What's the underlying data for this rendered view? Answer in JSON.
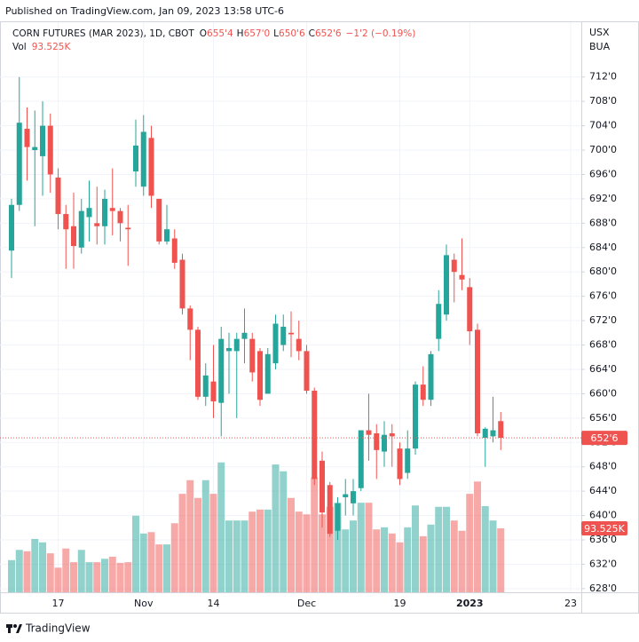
{
  "header": {
    "publisher": "Published on TradingView.com, Jan 09, 2023 13:58 UTC-6"
  },
  "footer": {
    "brand": "TradingView"
  },
  "chart_data": {
    "type": "candlestick",
    "title": "CORN FUTURES (MAR 2023), 1D, CBOT",
    "ohlc_legend": [
      {
        "key": "O",
        "value": "655'4"
      },
      {
        "key": "H",
        "value": "657'0"
      },
      {
        "key": "L",
        "value": "650'6"
      },
      {
        "key": "C",
        "value": "652'6"
      }
    ],
    "change_label": "−1'2 (−0.19%)",
    "volume_name": "Vol",
    "volume_label": "93.525K",
    "currency": "USX",
    "unit": "BUA",
    "up_color": "#26a69a",
    "down_color": "#ef5350",
    "grid": true,
    "categories": [
      null,
      null,
      null,
      null,
      null,
      null,
      "17",
      null,
      null,
      null,
      null,
      null,
      null,
      null,
      null,
      null,
      null,
      "Nov",
      null,
      null,
      null,
      null,
      null,
      null,
      null,
      null,
      "14",
      null,
      null,
      null,
      null,
      null,
      null,
      null,
      null,
      null,
      null,
      null,
      "Dec",
      null,
      null,
      null,
      null,
      null,
      null,
      null,
      null,
      null,
      null,
      null,
      "19",
      null,
      null,
      null,
      null,
      null,
      null,
      null,
      null,
      "2023",
      null,
      null,
      null,
      null,
      null,
      null,
      null,
      null,
      null,
      null,
      null,
      null,
      "23"
    ],
    "open": [
      683.5,
      691,
      703.5,
      700,
      699,
      704,
      695.5,
      689.5,
      687.5,
      684,
      689,
      688,
      687.5,
      690.5,
      690,
      687.25,
      696.5,
      694,
      702,
      692,
      685,
      685.5,
      682,
      674,
      670.5,
      659.5,
      662,
      658.5,
      667,
      667,
      669,
      669,
      667,
      660,
      665,
      668,
      670,
      669,
      667,
      660.5,
      649,
      645,
      637.5,
      643,
      642,
      644.5,
      654,
      653.5,
      650.5,
      653.5,
      651,
      647,
      651,
      661.5,
      659,
      669,
      673,
      682,
      679.5,
      677.5,
      670.5,
      652.75,
      653,
      655.5,
      null,
      null,
      null,
      null,
      null,
      null,
      null,
      null,
      null
    ],
    "high": [
      692,
      712,
      707,
      706.5,
      708,
      706,
      697,
      691,
      693,
      692,
      695,
      694,
      693.5,
      697,
      690.5,
      691,
      705,
      705.75,
      704,
      692,
      691,
      687,
      683,
      674.5,
      671,
      665,
      668,
      671,
      670,
      670,
      674,
      670,
      667.5,
      667.5,
      673,
      673,
      673.5,
      672,
      668,
      661,
      650.5,
      645.5,
      643,
      646,
      646,
      654,
      660,
      655,
      655.5,
      655,
      652,
      654,
      662,
      664.5,
      667,
      677,
      684.5,
      683,
      685.5,
      679,
      671.5,
      654.5,
      659.5,
      657,
      null,
      null,
      null,
      null,
      null,
      null,
      null,
      null,
      null
    ],
    "low": [
      679,
      690,
      695,
      687.5,
      692.5,
      693,
      687,
      680.5,
      680.5,
      683,
      685,
      684.5,
      684.5,
      686,
      685,
      681,
      694,
      692.5,
      690.5,
      684.5,
      684.5,
      680.5,
      673,
      665.5,
      659,
      658,
      656,
      653,
      660,
      656,
      665,
      662,
      658,
      660,
      664,
      667,
      666,
      665.5,
      660,
      645,
      638,
      636.5,
      636,
      640,
      640,
      644,
      649,
      646,
      648,
      648,
      645,
      646,
      650,
      658,
      658,
      667,
      672,
      675,
      677,
      668,
      653,
      648,
      652,
      650.75,
      null,
      null,
      null,
      null,
      null,
      null,
      null,
      null,
      null
    ],
    "close": [
      691,
      704.5,
      700.5,
      700.5,
      704,
      696,
      689.5,
      687,
      684.25,
      690,
      690.5,
      687.5,
      692,
      690,
      688,
      687,
      700.75,
      703,
      692.5,
      685,
      687,
      681.5,
      674,
      670.5,
      659.5,
      663,
      658.75,
      669,
      667.5,
      669,
      670,
      663.5,
      659,
      666.5,
      671.5,
      671,
      669.75,
      667,
      660.5,
      646,
      640.5,
      637,
      642,
      643.5,
      644,
      654,
      653.25,
      650.75,
      653.25,
      653,
      646,
      651,
      661.5,
      659,
      666.5,
      674.75,
      682.75,
      680,
      678.75,
      670.25,
      653.5,
      654.25,
      654,
      652.75,
      null,
      null,
      null,
      null,
      null,
      null,
      null,
      null,
      null
    ],
    "volume": [
      47,
      62,
      60,
      78,
      73,
      57,
      36,
      64,
      44,
      62,
      44,
      44,
      49,
      52,
      43,
      44,
      112,
      86,
      88,
      70,
      70,
      101,
      144,
      164,
      138,
      164,
      144,
      190,
      105,
      105,
      105,
      118,
      121,
      121,
      187,
      177,
      138,
      118,
      114,
      168,
      114,
      125,
      131,
      92,
      105,
      131,
      131,
      92,
      95,
      86,
      73,
      95,
      127,
      82,
      99,
      125,
      125,
      105,
      90,
      144,
      162,
      126,
      105,
      93.525,
      null,
      null,
      null,
      null,
      null,
      null,
      null,
      null,
      null
    ],
    "ylim": [
      627.4,
      721
    ],
    "y2lim": [
      0,
      834
    ],
    "yticks": [
      {
        "value": 628,
        "label": "628'0"
      },
      {
        "value": 632,
        "label": "632'0"
      },
      {
        "value": 636,
        "label": "636'0"
      },
      {
        "value": 640,
        "label": "640'0"
      },
      {
        "value": 644,
        "label": "644'0"
      },
      {
        "value": 648,
        "label": "648'0"
      },
      {
        "value": 652,
        "label": "652'0"
      },
      {
        "value": 656,
        "label": "656'0"
      },
      {
        "value": 660,
        "label": "660'0"
      },
      {
        "value": 664,
        "label": "664'0"
      },
      {
        "value": 668,
        "label": "668'0"
      },
      {
        "value": 672,
        "label": "672'0"
      },
      {
        "value": 676,
        "label": "676'0"
      },
      {
        "value": 680,
        "label": "680'0"
      },
      {
        "value": 684,
        "label": "684'0"
      },
      {
        "value": 688,
        "label": "688'0"
      },
      {
        "value": 692,
        "label": "692'0"
      },
      {
        "value": 696,
        "label": "696'0"
      },
      {
        "value": 700,
        "label": "700'0"
      },
      {
        "value": 704,
        "label": "704'0"
      },
      {
        "value": 708,
        "label": "708'0"
      },
      {
        "value": 712,
        "label": "712'0"
      }
    ]
  }
}
